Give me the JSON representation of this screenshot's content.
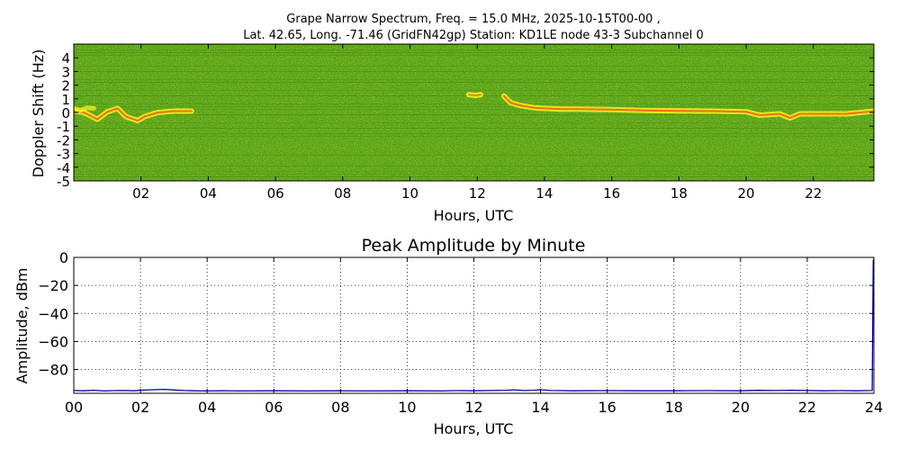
{
  "figure": {
    "title_line1": "Grape Narrow Spectrum, Freq. = 15.0 MHz, 2025-10-15T00-00 ,",
    "title_line2": "Lat.  42.65, Long. -71.46 (GridFN42gp) Station: KD1LE node 43-3 Subchannel 0"
  },
  "chart_data": [
    {
      "type": "heatmap",
      "title": "",
      "xlabel": "Hours, UTC",
      "ylabel": "Doppler Shift (Hz)",
      "xlim": [
        0,
        23.8
      ],
      "ylim": [
        -5,
        5
      ],
      "xticks": [
        2,
        4,
        6,
        8,
        10,
        12,
        14,
        16,
        18,
        20,
        22
      ],
      "xtick_labels": [
        "02",
        "04",
        "06",
        "08",
        "10",
        "12",
        "14",
        "16",
        "18",
        "20",
        "22"
      ],
      "yticks": [
        4,
        3,
        2,
        1,
        0,
        -1,
        -2,
        -3,
        -4,
        -5
      ],
      "ytick_labels": [
        "4",
        "3",
        "2",
        "1",
        "0",
        "-1",
        "-2",
        "-3",
        "-4",
        "-5"
      ],
      "colors": {
        "background": "#5aa317",
        "background_dark": "#3f8a10",
        "noise_light": "#9cc21c",
        "signal": "#f2ee1e",
        "signal_strong": "#ee5a14"
      },
      "traces": [
        {
          "name": "",
          "strength": "strong",
          "points": [
            [
              0.0,
              0.1
            ],
            [
              0.3,
              0.0
            ],
            [
              0.55,
              -0.3
            ],
            [
              0.7,
              -0.5
            ],
            [
              1.0,
              0.05
            ],
            [
              1.3,
              0.3
            ],
            [
              1.55,
              -0.3
            ],
            [
              1.9,
              -0.6
            ],
            [
              2.1,
              -0.3
            ],
            [
              2.5,
              0.0
            ],
            [
              3.0,
              0.1
            ],
            [
              3.5,
              0.1
            ]
          ]
        },
        {
          "name": "",
          "strength": "weak",
          "points": [
            [
              0.0,
              0.3
            ],
            [
              0.2,
              0.15
            ],
            [
              0.4,
              0.35
            ],
            [
              0.6,
              0.3
            ]
          ]
        },
        {
          "name": "",
          "strength": "medium",
          "points": [
            [
              11.75,
              1.3
            ],
            [
              11.95,
              1.25
            ],
            [
              12.1,
              1.3
            ]
          ]
        },
        {
          "name": "",
          "strength": "strong",
          "points": [
            [
              12.8,
              1.2
            ],
            [
              13.0,
              0.7
            ],
            [
              13.3,
              0.5
            ],
            [
              13.7,
              0.35
            ],
            [
              14.0,
              0.3
            ],
            [
              14.5,
              0.25
            ],
            [
              15.0,
              0.25
            ],
            [
              16.0,
              0.22
            ],
            [
              17.0,
              0.15
            ],
            [
              18.0,
              0.12
            ],
            [
              19.0,
              0.1
            ],
            [
              20.0,
              0.05
            ],
            [
              20.4,
              -0.2
            ],
            [
              21.0,
              -0.1
            ],
            [
              21.3,
              -0.4
            ],
            [
              21.6,
              -0.1
            ],
            [
              22.5,
              -0.1
            ],
            [
              23.0,
              -0.1
            ],
            [
              23.8,
              0.1
            ]
          ]
        }
      ]
    },
    {
      "type": "line",
      "title": "Peak Amplitude by Minute",
      "xlabel": "Hours, UTC",
      "ylabel": "Amplitude, dBm",
      "xlim": [
        0,
        24
      ],
      "ylim": [
        -97,
        0
      ],
      "grid": true,
      "xticks": [
        0,
        2,
        4,
        6,
        8,
        10,
        12,
        14,
        16,
        18,
        20,
        22,
        24
      ],
      "xtick_labels": [
        "00",
        "02",
        "04",
        "06",
        "08",
        "10",
        "12",
        "14",
        "16",
        "18",
        "20",
        "22",
        "24"
      ],
      "yticks": [
        0,
        -20,
        -40,
        -60,
        -80
      ],
      "ytick_labels": [
        "0",
        "−20",
        "−40",
        "−60",
        "−80"
      ],
      "series": [
        {
          "name": "",
          "color": "#0000aa",
          "x": [
            0,
            0.3,
            0.6,
            0.9,
            1.2,
            1.5,
            1.8,
            2.1,
            2.4,
            2.7,
            3.0,
            3.3,
            3.6,
            3.9,
            4.5,
            5,
            6,
            7,
            8,
            9,
            10,
            11,
            11.5,
            12,
            12.5,
            13,
            13.2,
            13.5,
            13.8,
            14,
            14.3,
            14.6,
            15,
            16,
            17,
            18,
            19,
            20,
            20.5,
            21,
            21.5,
            22,
            22.5,
            23,
            23.5,
            23.95,
            23.98,
            24
          ],
          "y": [
            -95,
            -95.2,
            -94.8,
            -95.3,
            -95.1,
            -95,
            -95.2,
            -94.7,
            -94.4,
            -94.2,
            -94.6,
            -95,
            -95.2,
            -95.3,
            -95.2,
            -95.3,
            -95.2,
            -95.3,
            -95.2,
            -95.3,
            -95.2,
            -95.3,
            -95.1,
            -95.2,
            -95,
            -94.8,
            -94.5,
            -95,
            -94.8,
            -94.4,
            -95,
            -95.1,
            -95.2,
            -95.1,
            -95.2,
            -95.2,
            -95.1,
            -95.2,
            -94.9,
            -95,
            -94.8,
            -95,
            -95.2,
            -95.1,
            -95.2,
            -95,
            -2,
            -1
          ]
        }
      ]
    }
  ]
}
